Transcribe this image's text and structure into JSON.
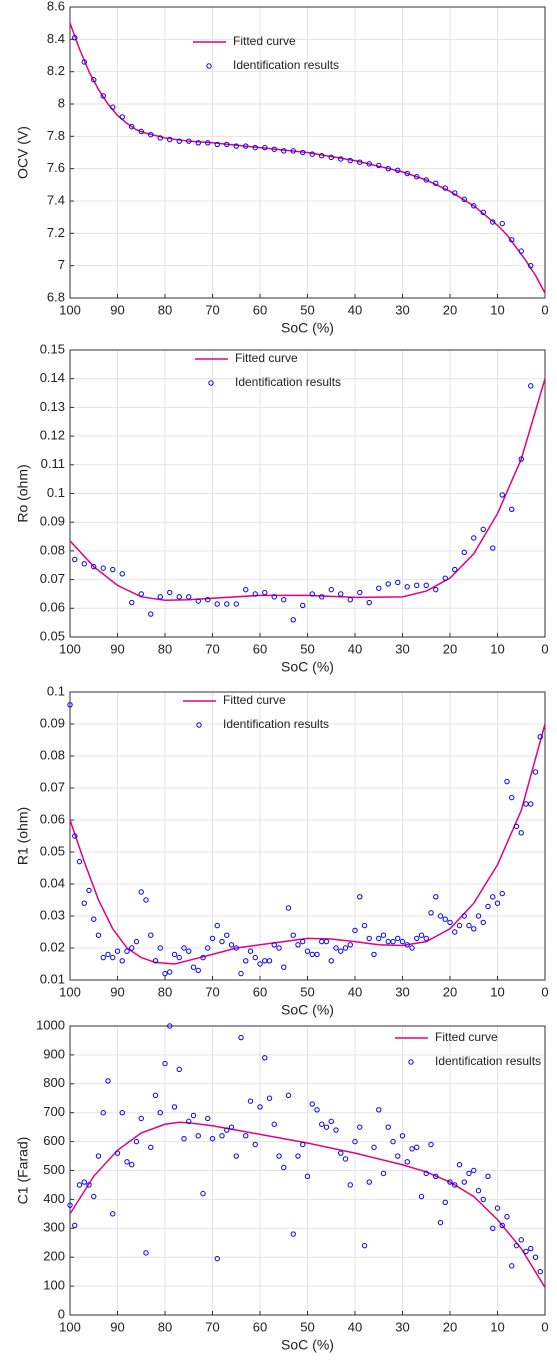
{
  "chart_data": [
    {
      "type": "line",
      "xlabel": "SoC (%)",
      "ylabel": "OCV (V)",
      "xlim": [
        100,
        0
      ],
      "xticks": [
        100,
        90,
        80,
        70,
        60,
        50,
        40,
        30,
        20,
        10,
        0
      ],
      "ylim": [
        6.8,
        8.6
      ],
      "yticks": [
        6.8,
        7,
        7.2,
        7.4,
        7.6,
        7.8,
        8,
        8.2,
        8.4,
        8.6
      ],
      "grid": true,
      "legend": "upper center",
      "series": [
        {
          "name": "Fitted curve",
          "type": "line",
          "color": "#e6007e",
          "x": [
            100,
            98,
            96,
            94,
            92,
            90,
            88,
            86,
            84,
            80,
            75,
            70,
            60,
            50,
            40,
            30,
            25,
            20,
            15,
            10,
            8,
            6,
            4,
            2,
            0
          ],
          "values": [
            8.5,
            8.34,
            8.2,
            8.09,
            8.0,
            7.93,
            7.88,
            7.84,
            7.82,
            7.79,
            7.77,
            7.76,
            7.73,
            7.7,
            7.65,
            7.58,
            7.53,
            7.46,
            7.37,
            7.25,
            7.19,
            7.11,
            7.03,
            6.94,
            6.83
          ]
        },
        {
          "name": "Identification results",
          "type": "scatter",
          "color": "#0000ff",
          "x": [
            99,
            97,
            95,
            93,
            91,
            89,
            87,
            85,
            83,
            81,
            79,
            77,
            75,
            73,
            71,
            69,
            67,
            65,
            63,
            61,
            59,
            57,
            55,
            53,
            51,
            49,
            47,
            45,
            43,
            41,
            39,
            37,
            35,
            33,
            31,
            29,
            27,
            25,
            23,
            21,
            19,
            17,
            15,
            13,
            11,
            9,
            7,
            5,
            3
          ],
          "values": [
            8.41,
            8.26,
            8.15,
            8.05,
            7.98,
            7.92,
            7.86,
            7.83,
            7.81,
            7.79,
            7.78,
            7.77,
            7.77,
            7.76,
            7.76,
            7.75,
            7.75,
            7.74,
            7.74,
            7.73,
            7.73,
            7.72,
            7.71,
            7.71,
            7.7,
            7.69,
            7.68,
            7.67,
            7.66,
            7.65,
            7.64,
            7.63,
            7.62,
            7.6,
            7.59,
            7.57,
            7.55,
            7.53,
            7.51,
            7.48,
            7.45,
            7.41,
            7.37,
            7.33,
            7.27,
            7.26,
            7.16,
            7.09,
            7.0
          ]
        }
      ]
    },
    {
      "type": "line",
      "xlabel": "SoC (%)",
      "ylabel": "Ro (ohm)",
      "xlim": [
        100,
        0
      ],
      "xticks": [
        100,
        90,
        80,
        70,
        60,
        50,
        40,
        30,
        20,
        10,
        0
      ],
      "ylim": [
        0.05,
        0.15
      ],
      "yticks": [
        0.05,
        0.06,
        0.07,
        0.08,
        0.09,
        0.1,
        0.11,
        0.12,
        0.13,
        0.14,
        0.15
      ],
      "grid": true,
      "legend": "upper center",
      "series": [
        {
          "name": "Fitted curve",
          "type": "line",
          "color": "#e6007e",
          "x": [
            100,
            95,
            90,
            85,
            80,
            75,
            70,
            60,
            50,
            40,
            30,
            25,
            20,
            15,
            10,
            5,
            0
          ],
          "values": [
            0.0835,
            0.0745,
            0.068,
            0.064,
            0.0628,
            0.063,
            0.0635,
            0.0645,
            0.0645,
            0.0638,
            0.064,
            0.066,
            0.0705,
            0.079,
            0.093,
            0.112,
            0.14
          ]
        },
        {
          "name": "Identification results",
          "type": "scatter",
          "color": "#0000ff",
          "x": [
            99,
            97,
            95,
            93,
            91,
            89,
            87,
            85,
            83,
            81,
            79,
            77,
            75,
            73,
            71,
            69,
            67,
            65,
            63,
            61,
            59,
            57,
            55,
            53,
            51,
            49,
            47,
            45,
            43,
            41,
            39,
            37,
            35,
            33,
            31,
            29,
            27,
            25,
            23,
            21,
            19,
            17,
            15,
            13,
            11,
            9,
            7,
            5,
            3
          ],
          "values": [
            0.077,
            0.0755,
            0.0745,
            0.074,
            0.0735,
            0.072,
            0.062,
            0.065,
            0.058,
            0.064,
            0.0655,
            0.064,
            0.064,
            0.0625,
            0.063,
            0.0615,
            0.0615,
            0.0615,
            0.0665,
            0.065,
            0.0655,
            0.064,
            0.063,
            0.056,
            0.061,
            0.065,
            0.064,
            0.0665,
            0.065,
            0.063,
            0.0655,
            0.062,
            0.067,
            0.0685,
            0.069,
            0.0675,
            0.068,
            0.068,
            0.0665,
            0.0705,
            0.0735,
            0.0795,
            0.0845,
            0.0875,
            0.081,
            0.0995,
            0.0945,
            0.112,
            0.1375
          ]
        }
      ]
    },
    {
      "type": "line",
      "xlabel": "SoC (%)",
      "ylabel": "R1 (ohm)",
      "xlim": [
        100,
        0
      ],
      "xticks": [
        100,
        90,
        80,
        70,
        60,
        50,
        40,
        30,
        20,
        10,
        0
      ],
      "ylim": [
        0.01,
        0.1
      ],
      "yticks": [
        0.01,
        0.02,
        0.03,
        0.04,
        0.05,
        0.06,
        0.07,
        0.08,
        0.09,
        0.1
      ],
      "grid": true,
      "legend": "upper center",
      "series": [
        {
          "name": "Fitted curve",
          "type": "line",
          "color": "#e6007e",
          "x": [
            100,
            97,
            94,
            91,
            88,
            85,
            82,
            78,
            74,
            70,
            65,
            60,
            55,
            50,
            45,
            40,
            35,
            30,
            25,
            20,
            15,
            10,
            5,
            0
          ],
          "values": [
            0.06,
            0.047,
            0.035,
            0.026,
            0.02,
            0.017,
            0.0155,
            0.015,
            0.0165,
            0.018,
            0.02,
            0.021,
            0.022,
            0.023,
            0.0228,
            0.022,
            0.021,
            0.0208,
            0.022,
            0.026,
            0.034,
            0.046,
            0.063,
            0.09
          ]
        },
        {
          "name": "Identification results",
          "type": "scatter",
          "color": "#0000ff",
          "x": [
            100,
            99,
            98,
            97,
            96,
            95,
            94,
            93,
            92,
            91,
            90,
            89,
            88,
            87,
            86,
            85,
            84,
            83,
            82,
            81,
            80,
            79,
            78,
            77,
            76,
            75,
            74,
            73,
            72,
            71,
            70,
            69,
            68,
            67,
            66,
            65,
            64,
            63,
            62,
            61,
            60,
            59,
            58,
            57,
            56,
            55,
            54,
            53,
            52,
            51,
            50,
            49,
            48,
            47,
            46,
            45,
            44,
            43,
            42,
            41,
            40,
            39,
            38,
            37,
            36,
            35,
            34,
            33,
            32,
            31,
            30,
            29,
            28,
            27,
            26,
            25,
            24,
            23,
            22,
            21,
            20,
            19,
            18,
            17,
            16,
            15,
            14,
            13,
            12,
            11,
            10,
            9,
            8,
            7,
            6,
            5,
            4,
            3,
            2,
            1
          ],
          "values": [
            0.096,
            0.055,
            0.047,
            0.034,
            0.038,
            0.029,
            0.024,
            0.017,
            0.018,
            0.017,
            0.019,
            0.016,
            0.019,
            0.02,
            0.022,
            0.0375,
            0.035,
            0.024,
            0.016,
            0.02,
            0.012,
            0.0125,
            0.018,
            0.017,
            0.02,
            0.019,
            0.014,
            0.013,
            0.017,
            0.02,
            0.023,
            0.027,
            0.022,
            0.024,
            0.021,
            0.02,
            0.012,
            0.016,
            0.019,
            0.017,
            0.015,
            0.016,
            0.016,
            0.021,
            0.02,
            0.014,
            0.0325,
            0.024,
            0.021,
            0.022,
            0.019,
            0.018,
            0.018,
            0.022,
            0.022,
            0.016,
            0.02,
            0.019,
            0.02,
            0.021,
            0.0255,
            0.036,
            0.027,
            0.023,
            0.018,
            0.023,
            0.024,
            0.022,
            0.022,
            0.023,
            0.022,
            0.021,
            0.02,
            0.023,
            0.024,
            0.023,
            0.031,
            0.036,
            0.03,
            0.029,
            0.028,
            0.025,
            0.027,
            0.03,
            0.027,
            0.026,
            0.03,
            0.028,
            0.033,
            0.036,
            0.034,
            0.037,
            0.072,
            0.067,
            0.058,
            0.056,
            0.065,
            0.065,
            0.075,
            0.086
          ]
        }
      ]
    },
    {
      "type": "line",
      "xlabel": "SoC (%)",
      "ylabel": "C1 (Farad)",
      "xlim": [
        100,
        0
      ],
      "xticks": [
        100,
        90,
        80,
        70,
        60,
        50,
        40,
        30,
        20,
        10,
        0
      ],
      "ylim": [
        0,
        1000
      ],
      "yticks": [
        0,
        100,
        200,
        300,
        400,
        500,
        600,
        700,
        800,
        900,
        1000
      ],
      "grid": true,
      "legend": "upper right",
      "series": [
        {
          "name": "Fitted curve",
          "type": "line",
          "color": "#e6007e",
          "x": [
            100,
            95,
            90,
            85,
            80,
            77,
            75,
            70,
            60,
            50,
            40,
            30,
            25,
            20,
            15,
            10,
            5,
            0
          ],
          "values": [
            350,
            480,
            570,
            630,
            660,
            667,
            665,
            655,
            625,
            595,
            560,
            520,
            495,
            460,
            410,
            330,
            230,
            95
          ]
        },
        {
          "name": "Identification results",
          "type": "scatter",
          "color": "#0000ff",
          "x": [
            100,
            99,
            98,
            97,
            96,
            95,
            94,
            93,
            92,
            91,
            90,
            89,
            88,
            87,
            86,
            85,
            84,
            83,
            82,
            81,
            80,
            79,
            78,
            77,
            76,
            75,
            74,
            73,
            72,
            71,
            70,
            69,
            68,
            67,
            66,
            65,
            64,
            63,
            62,
            61,
            60,
            59,
            58,
            57,
            56,
            55,
            54,
            53,
            52,
            51,
            50,
            49,
            48,
            47,
            46,
            45,
            44,
            43,
            42,
            41,
            40,
            39,
            38,
            37,
            36,
            35,
            34,
            33,
            32,
            31,
            30,
            29,
            28,
            27,
            26,
            25,
            24,
            23,
            22,
            21,
            20,
            19,
            18,
            17,
            16,
            15,
            14,
            13,
            12,
            11,
            10,
            9,
            8,
            7,
            6,
            5,
            4,
            3,
            2,
            1
          ],
          "values": [
            380,
            310,
            450,
            460,
            450,
            410,
            550,
            700,
            810,
            350,
            560,
            700,
            530,
            520,
            600,
            680,
            215,
            580,
            760,
            700,
            870,
            1000,
            720,
            850,
            610,
            670,
            690,
            620,
            420,
            680,
            610,
            195,
            620,
            640,
            650,
            550,
            960,
            620,
            740,
            590,
            720,
            890,
            750,
            660,
            550,
            510,
            760,
            280,
            550,
            590,
            480,
            730,
            710,
            660,
            650,
            670,
            640,
            560,
            540,
            450,
            600,
            650,
            240,
            460,
            580,
            710,
            490,
            650,
            600,
            550,
            620,
            530,
            575,
            580,
            410,
            490,
            590,
            480,
            320,
            390,
            460,
            450,
            520,
            460,
            490,
            500,
            430,
            400,
            480,
            300,
            370,
            310,
            340,
            170,
            240,
            260,
            220,
            230,
            200,
            150
          ]
        }
      ]
    }
  ]
}
